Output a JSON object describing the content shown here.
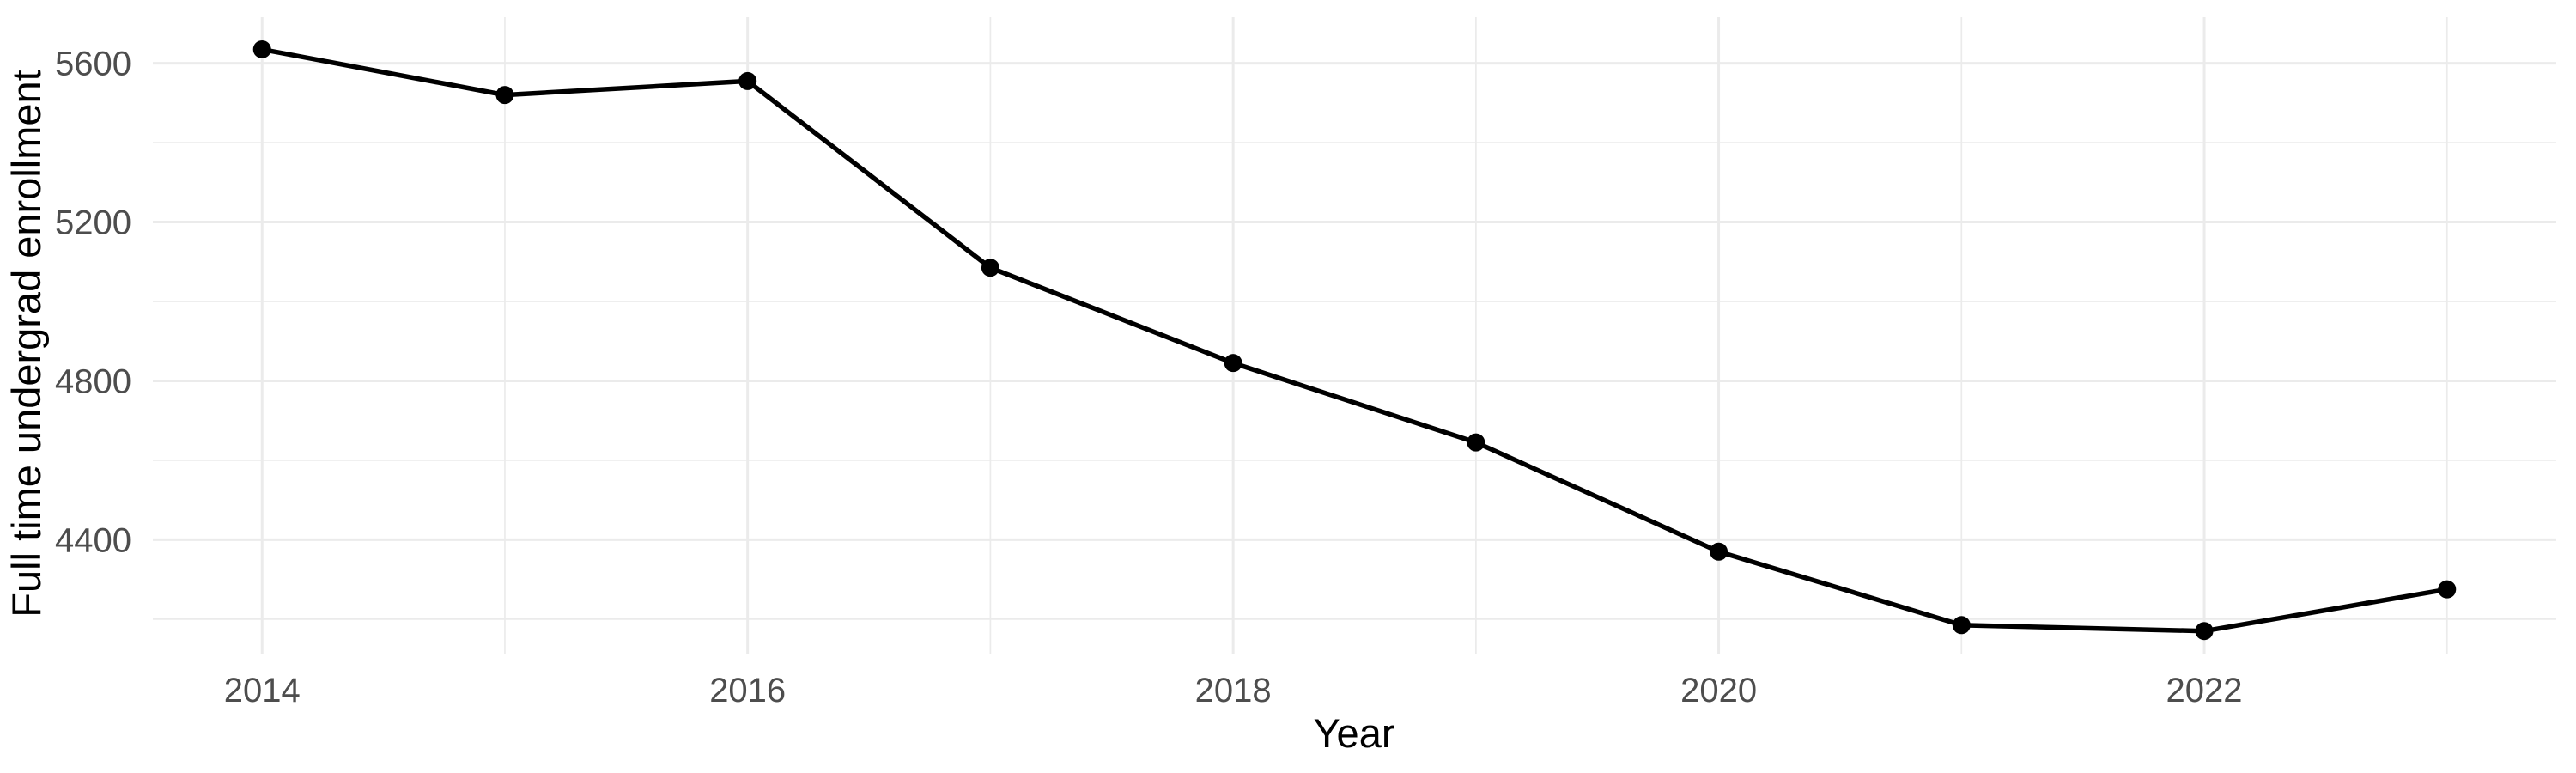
{
  "chart_data": {
    "type": "line",
    "title": "",
    "xlabel": "Year",
    "ylabel": "Full time undergrad enrollment",
    "x": [
      2014,
      2015,
      2016,
      2017,
      2018,
      2019,
      2020,
      2021,
      2022,
      2023
    ],
    "series": [
      {
        "name": "Full time undergrad enrollment",
        "values": [
          5635,
          5520,
          5555,
          5085,
          4845,
          4645,
          4370,
          4185,
          4170,
          4275
        ]
      }
    ],
    "x_ticks": {
      "major": [
        2014,
        2016,
        2018,
        2020,
        2022
      ],
      "minor": [
        2015,
        2017,
        2019,
        2021,
        2023
      ]
    },
    "y_ticks": {
      "major": [
        4400,
        4800,
        5200,
        5600
      ],
      "minor": [
        4200,
        4600,
        5000,
        5400
      ]
    },
    "xlim": [
      2013.55,
      2023.45
    ],
    "ylim": [
      4111,
      5716
    ],
    "grid": true,
    "legend": "none",
    "style": {
      "background": "#FFFFFF",
      "grid_major_color": "#EBEBEB",
      "grid_minor_color": "#EBEBEB",
      "line_color": "#000000",
      "point_color": "#000000",
      "tick_label_color": "#4D4D4D",
      "axis_title_color": "#000000"
    }
  }
}
